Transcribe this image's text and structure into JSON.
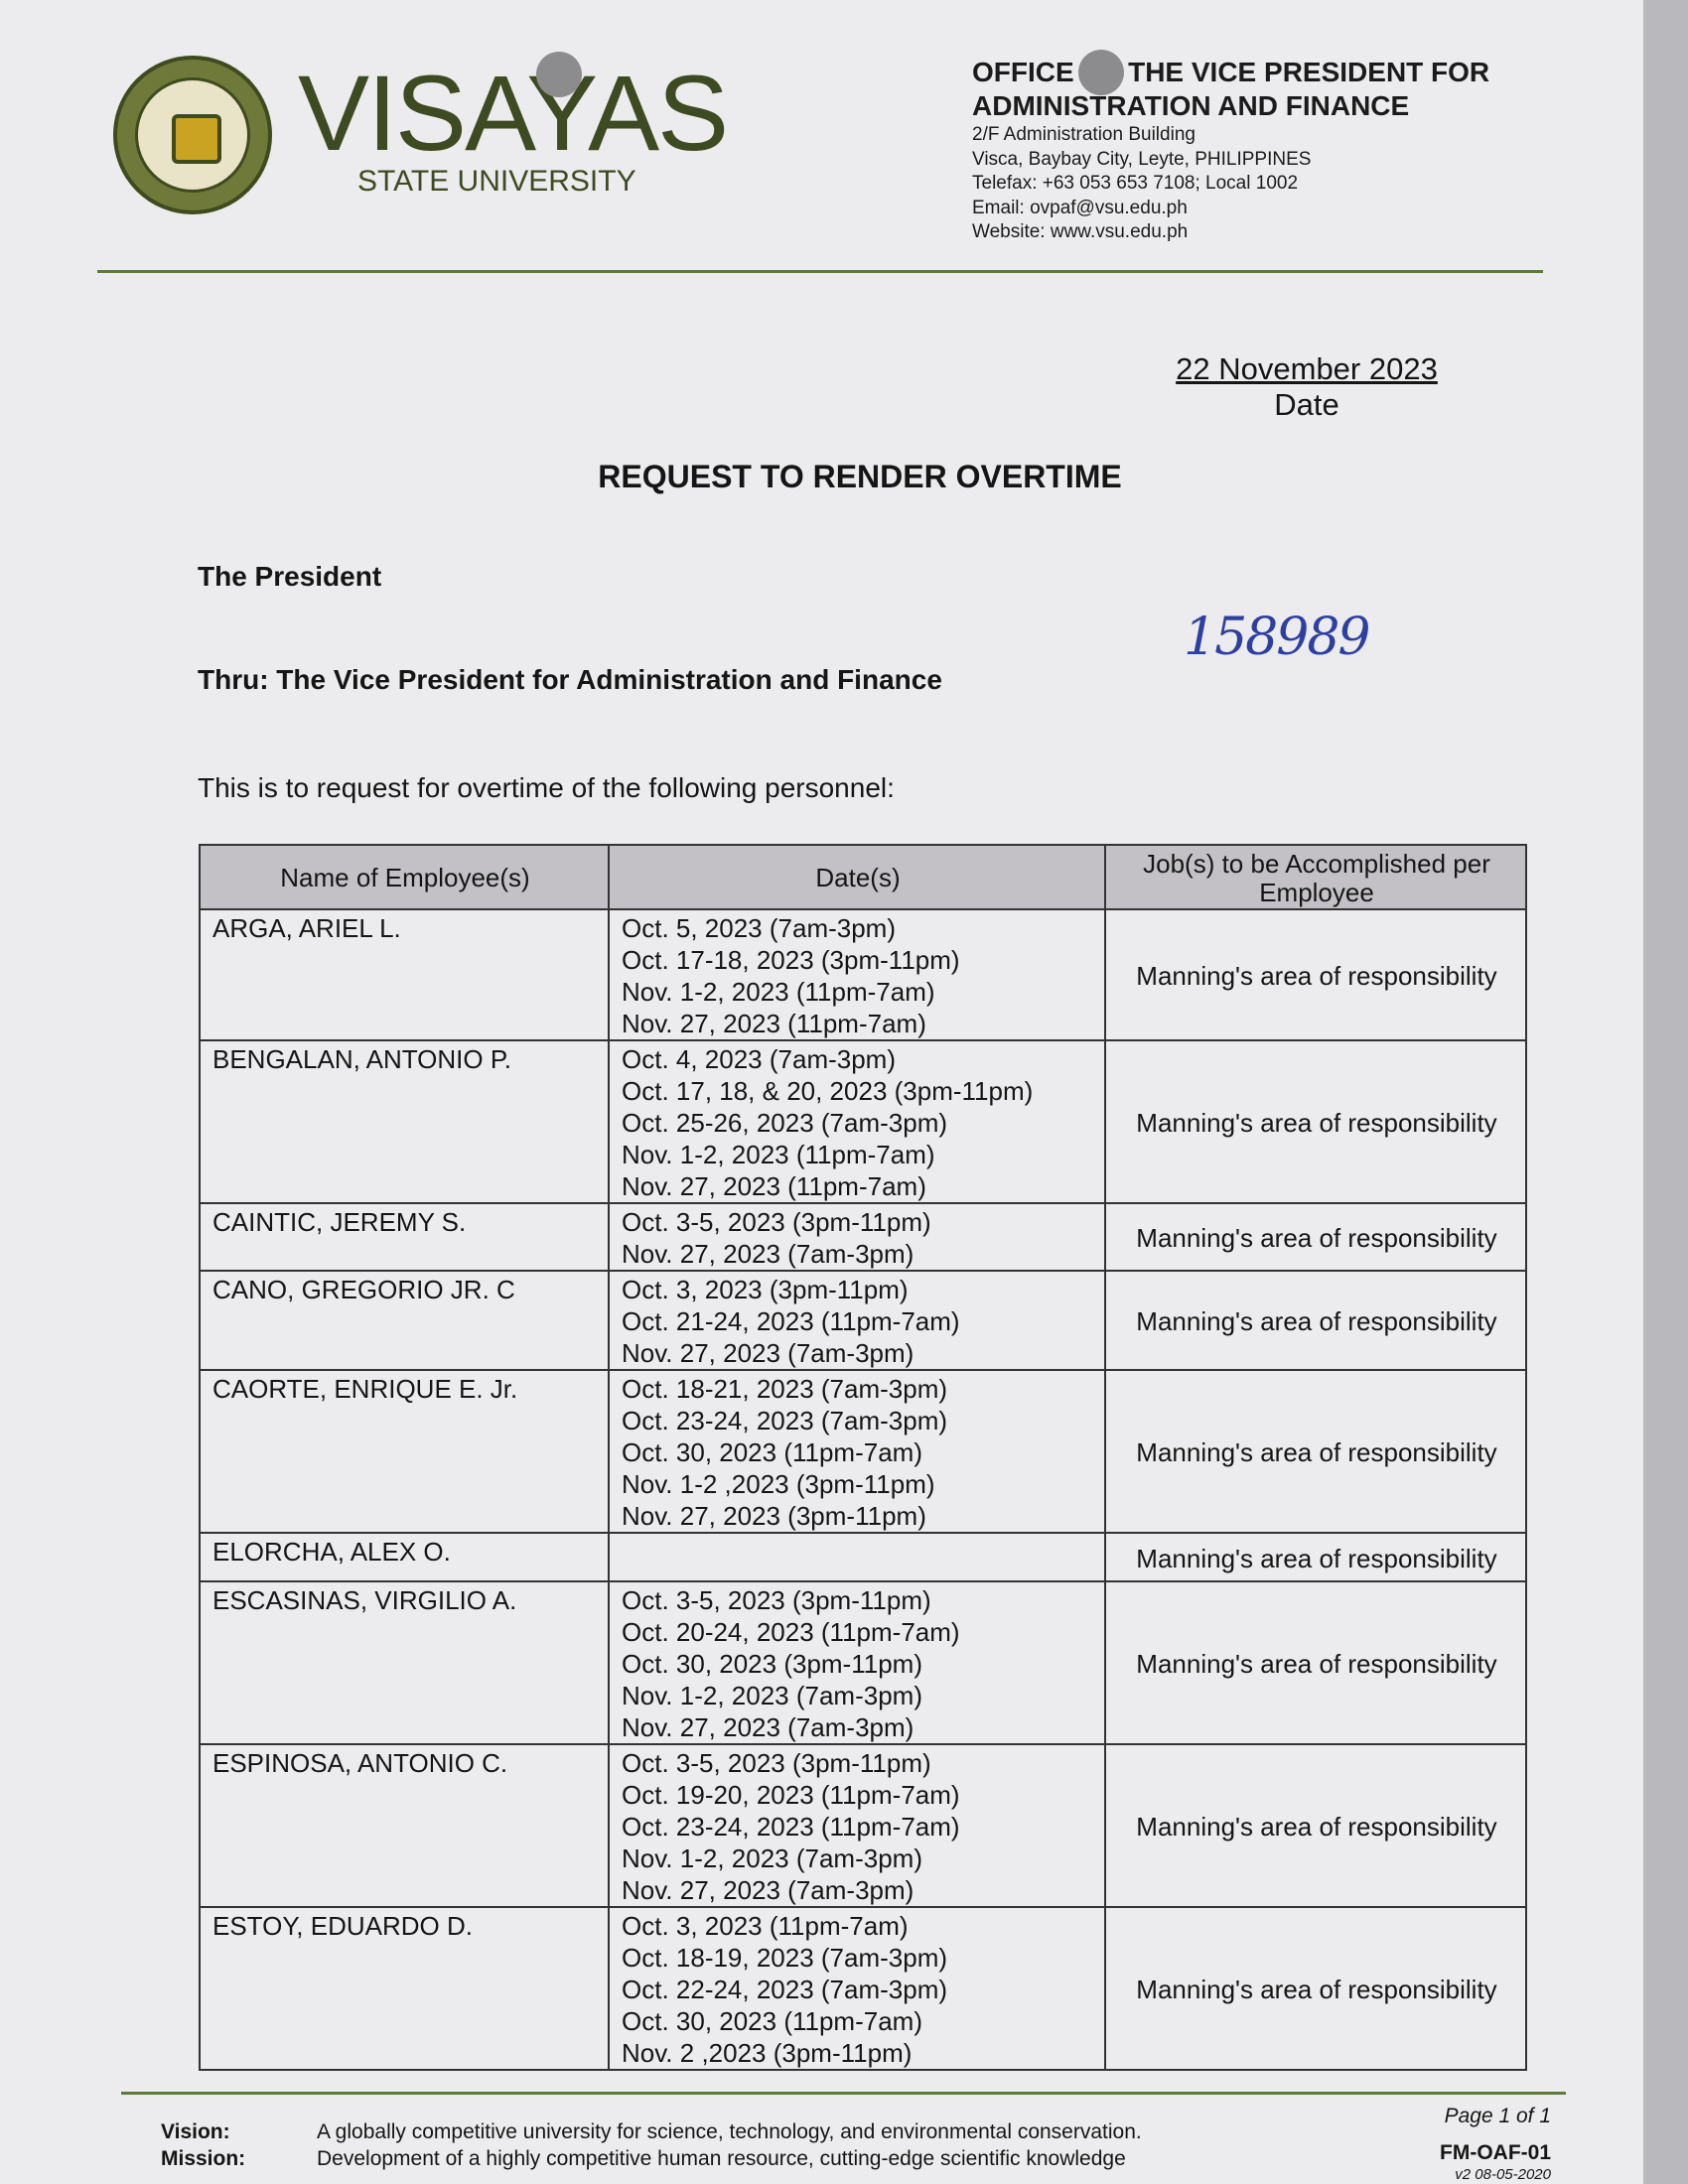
{
  "header": {
    "seal_text": "VISAYAS STATE UNIVERSITY",
    "brand_name": "VISAYAS",
    "brand_sub": "STATE UNIVERSITY",
    "office_line1": "OFFICE OF THE VICE PRESIDENT FOR",
    "office_line2": "ADMINISTRATION AND FINANCE",
    "address": [
      "2/F Administration Building",
      "Visca, Baybay City, Leyte, PHILIPPINES",
      "Telefax: +63 053 653 7108; Local 1002",
      "Email: ovpaf@vsu.edu.ph",
      "Website: www.vsu.edu.ph"
    ]
  },
  "date": {
    "value": "22 November 2023",
    "label": "Date"
  },
  "title": "REQUEST TO RENDER OVERTIME",
  "addressee": "The President",
  "thru": "Thru: The Vice President for Administration and Finance",
  "handwritten_number": "158989",
  "intro": "This is to request for overtime of the following personnel:",
  "table": {
    "headers": [
      "Name of Employee(s)",
      "Date(s)",
      "Job(s) to be Accomplished per Employee"
    ],
    "rows": [
      {
        "name": "ARGA, ARIEL L.",
        "dates": [
          "Oct. 5, 2023 (7am-3pm)",
          "Oct. 17-18, 2023 (3pm-11pm)",
          "Nov. 1-2, 2023 (11pm-7am)",
          "Nov. 27, 2023 (11pm-7am)"
        ],
        "job": "Manning's area of responsibility"
      },
      {
        "name": "BENGALAN, ANTONIO P.",
        "dates": [
          "Oct. 4, 2023 (7am-3pm)",
          "Oct. 17, 18, & 20, 2023 (3pm-11pm)",
          "Oct. 25-26, 2023 (7am-3pm)",
          "Nov. 1-2, 2023 (11pm-7am)",
          "Nov. 27, 2023 (11pm-7am)"
        ],
        "job": "Manning's area of responsibility"
      },
      {
        "name": "CAINTIC, JEREMY S.",
        "dates": [
          "Oct. 3-5, 2023 (3pm-11pm)",
          "Nov. 27, 2023 (7am-3pm)"
        ],
        "job": "Manning's area of responsibility"
      },
      {
        "name": "CANO, GREGORIO JR. C",
        "dates": [
          "Oct. 3, 2023 (3pm-11pm)",
          "Oct. 21-24, 2023 (11pm-7am)",
          "Nov. 27, 2023 (7am-3pm)"
        ],
        "job": "Manning's area of responsibility"
      },
      {
        "name": "CAORTE, ENRIQUE E. Jr.",
        "dates": [
          "Oct. 18-21, 2023 (7am-3pm)",
          "Oct. 23-24, 2023 (7am-3pm)",
          "Oct. 30, 2023 (11pm-7am)",
          "Nov. 1-2 ,2023 (3pm-11pm)",
          "Nov. 27, 2023 (3pm-11pm)"
        ],
        "job": "Manning's area of responsibility"
      },
      {
        "name": "ELORCHA, ALEX O.",
        "dates": [],
        "job": "Manning's area of responsibility"
      },
      {
        "name": "ESCASINAS, VIRGILIO A.",
        "dates": [
          "Oct. 3-5, 2023 (3pm-11pm)",
          "Oct. 20-24, 2023 (11pm-7am)",
          "Oct. 30, 2023 (3pm-11pm)",
          "Nov. 1-2, 2023 (7am-3pm)",
          "Nov. 27, 2023 (7am-3pm)"
        ],
        "job": "Manning's area of responsibility"
      },
      {
        "name": "ESPINOSA, ANTONIO C.",
        "dates": [
          "Oct. 3-5, 2023 (3pm-11pm)",
          "Oct. 19-20, 2023 (11pm-7am)",
          "Oct. 23-24, 2023 (11pm-7am)",
          "Nov. 1-2, 2023 (7am-3pm)",
          "Nov. 27, 2023 (7am-3pm)"
        ],
        "job": "Manning's area of responsibility"
      },
      {
        "name": "ESTOY, EDUARDO D.",
        "dates": [
          "Oct. 3, 2023 (11pm-7am)",
          "Oct. 18-19, 2023 (7am-3pm)",
          "Oct. 22-24, 2023 (7am-3pm)",
          "Oct. 30, 2023 (11pm-7am)",
          "Nov. 2 ,2023 (3pm-11pm)"
        ],
        "job": "Manning's area of responsibility"
      }
    ]
  },
  "footer": {
    "vision_label": "Vision:",
    "vision": "A globally competitive university for science, technology, and environmental conservation.",
    "mission_label": "Mission:",
    "mission": "Development of a highly competitive human resource, cutting-edge scientific knowledge",
    "page": "Page 1 of 1",
    "form_code": "FM-OAF-01",
    "version": "v2 08-05-2020"
  },
  "colors": {
    "brand_green": "#3e4a21",
    "rule_green": "#5d7a3a",
    "table_header": "#c3c1c6",
    "handwriting": "#2d3fa0"
  }
}
